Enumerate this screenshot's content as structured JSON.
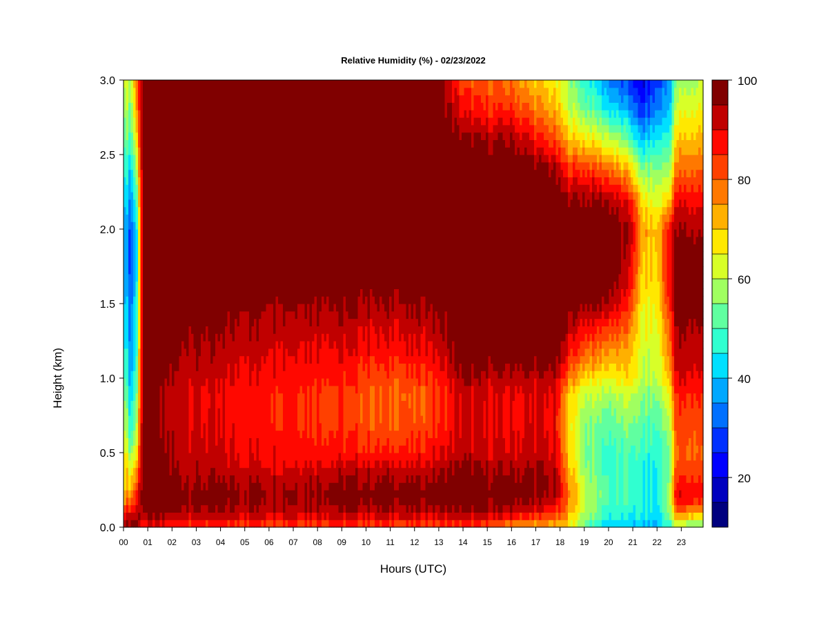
{
  "chart_data": {
    "type": "heatmap",
    "title": "Relative Humidity (%) - 02/23/2022",
    "xlabel": "Hours (UTC)",
    "ylabel": "Height (km)",
    "x_ticks": [
      "00",
      "01",
      "02",
      "03",
      "04",
      "05",
      "06",
      "07",
      "08",
      "09",
      "10",
      "11",
      "12",
      "13",
      "14",
      "15",
      "16",
      "17",
      "18",
      "19",
      "20",
      "21",
      "22",
      "23"
    ],
    "xlim": [
      0,
      23.9
    ],
    "y_ticks": [
      "0.0",
      "0.5",
      "1.0",
      "1.5",
      "2.0",
      "2.5",
      "3.0"
    ],
    "ylim": [
      0,
      3.0
    ],
    "colorbar": {
      "range": [
        10,
        100
      ],
      "step": 5,
      "ticks": [
        "20",
        "40",
        "60",
        "80",
        "100"
      ],
      "colors": [
        "#00007F",
        "#0000BF",
        "#0000FF",
        "#0030FF",
        "#0070FF",
        "#00A8FF",
        "#00E0FF",
        "#30FFD0",
        "#60FFA0",
        "#A0FF60",
        "#D8FF28",
        "#FFE800",
        "#FFB000",
        "#FF7800",
        "#FF4000",
        "#FF0800",
        "#C00000",
        "#800000"
      ]
    },
    "rh_profiles": {
      "heights_km": [
        0.0,
        0.05,
        0.1,
        0.2,
        0.3,
        0.4,
        0.5,
        0.7,
        0.9,
        1.0,
        1.2,
        1.4,
        1.5,
        1.7,
        2.0,
        2.2,
        2.4,
        2.6,
        2.8,
        3.0
      ],
      "times_utc": [
        0.0,
        0.3,
        0.55,
        0.8,
        1.5,
        2.5,
        4.0,
        6.0,
        7.5,
        9.0,
        10.5,
        12.0,
        13.0,
        14.0,
        15.0,
        16.0,
        17.0,
        17.8,
        18.3,
        19.0,
        20.0,
        21.0,
        21.3,
        22.0,
        22.5,
        22.8,
        23.9
      ],
      "values": [
        [
          97,
          97,
          85,
          74,
          70,
          72,
          70,
          65,
          60,
          55,
          50,
          48,
          45,
          42,
          40,
          45,
          50,
          55,
          60,
          65
        ],
        [
          97,
          97,
          88,
          78,
          70,
          65,
          55,
          45,
          40,
          38,
          35,
          33,
          32,
          30,
          30,
          35,
          40,
          50,
          55,
          60
        ],
        [
          97,
          97,
          92,
          88,
          82,
          75,
          68,
          60,
          55,
          52,
          50,
          48,
          47,
          45,
          45,
          52,
          60,
          68,
          75,
          80
        ],
        [
          88,
          92,
          97,
          100,
          100,
          100,
          100,
          100,
          100,
          100,
          100,
          100,
          100,
          100,
          100,
          100,
          100,
          100,
          100,
          100
        ],
        [
          86,
          92,
          96,
          98,
          97,
          96,
          96,
          95,
          95,
          96,
          98,
          100,
          100,
          100,
          100,
          100,
          100,
          100,
          100,
          100
        ],
        [
          84,
          90,
          95,
          98,
          96,
          94,
          93,
          92,
          92,
          93,
          96,
          99,
          100,
          100,
          100,
          100,
          100,
          100,
          100,
          100
        ],
        [
          83,
          89,
          94,
          97,
          95,
          92,
          90,
          89,
          88,
          90,
          93,
          96,
          98,
          100,
          100,
          100,
          100,
          100,
          100,
          100
        ],
        [
          83,
          89,
          94,
          97,
          95,
          91,
          89,
          87,
          87,
          89,
          92,
          95,
          97,
          100,
          100,
          100,
          100,
          100,
          100,
          100
        ],
        [
          83,
          89,
          94,
          97,
          95,
          91,
          88,
          86,
          86,
          88,
          91,
          95,
          97,
          100,
          100,
          100,
          100,
          100,
          100,
          97
        ],
        [
          83,
          89,
          94,
          98,
          96,
          92,
          87,
          84,
          84,
          86,
          90,
          94,
          96,
          100,
          100,
          100,
          100,
          100,
          100,
          97
        ],
        [
          82,
          88,
          94,
          98,
          96,
          92,
          86,
          80,
          80,
          82,
          88,
          92,
          95,
          100,
          100,
          100,
          100,
          100,
          100,
          97
        ],
        [
          82,
          88,
          93,
          98,
          96,
          91,
          86,
          81,
          80,
          83,
          89,
          93,
          96,
          100,
          100,
          100,
          100,
          100,
          100,
          100
        ],
        [
          82,
          88,
          94,
          98,
          97,
          93,
          89,
          85,
          84,
          86,
          91,
          95,
          97,
          100,
          100,
          100,
          100,
          100,
          100,
          100
        ],
        [
          82,
          90,
          95,
          100,
          100,
          97,
          93,
          91,
          92,
          95,
          100,
          100,
          100,
          100,
          100,
          100,
          100,
          97,
          88,
          82
        ],
        [
          80,
          88,
          94,
          98,
          97,
          94,
          91,
          89,
          90,
          93,
          100,
          100,
          100,
          100,
          100,
          100,
          100,
          95,
          85,
          80
        ],
        [
          76,
          84,
          92,
          98,
          97,
          94,
          91,
          89,
          90,
          93,
          100,
          100,
          100,
          100,
          100,
          100,
          100,
          95,
          85,
          78
        ],
        [
          73,
          80,
          88,
          96,
          97,
          95,
          92,
          90,
          90,
          93,
          100,
          100,
          100,
          100,
          100,
          100,
          98,
          88,
          78,
          70
        ],
        [
          70,
          78,
          85,
          93,
          95,
          93,
          90,
          88,
          90,
          93,
          100,
          100,
          100,
          100,
          100,
          100,
          95,
          82,
          72,
          66
        ],
        [
          68,
          72,
          76,
          80,
          78,
          75,
          72,
          70,
          72,
          80,
          90,
          96,
          100,
          100,
          100,
          97,
          85,
          72,
          62,
          58
        ],
        [
          52,
          56,
          60,
          62,
          60,
          57,
          55,
          57,
          62,
          70,
          82,
          92,
          97,
          100,
          100,
          96,
          85,
          68,
          55,
          48
        ],
        [
          42,
          45,
          48,
          50,
          50,
          48,
          48,
          52,
          58,
          65,
          77,
          88,
          96,
          100,
          100,
          95,
          80,
          62,
          45,
          35
        ],
        [
          40,
          43,
          46,
          48,
          48,
          48,
          50,
          56,
          62,
          68,
          72,
          78,
          82,
          88,
          92,
          85,
          68,
          50,
          35,
          25
        ],
        [
          40,
          42,
          45,
          46,
          46,
          46,
          48,
          52,
          56,
          60,
          62,
          64,
          66,
          70,
          75,
          68,
          55,
          40,
          25,
          18
        ],
        [
          38,
          40,
          42,
          44,
          44,
          44,
          46,
          50,
          55,
          60,
          62,
          64,
          66,
          68,
          70,
          62,
          55,
          45,
          35,
          28
        ],
        [
          48,
          52,
          56,
          58,
          56,
          54,
          54,
          60,
          66,
          72,
          78,
          82,
          86,
          90,
          88,
          70,
          58,
          48,
          40,
          35
        ],
        [
          56,
          66,
          78,
          90,
          86,
          82,
          80,
          82,
          86,
          90,
          93,
          96,
          98,
          100,
          95,
          88,
          78,
          70,
          62,
          55
        ],
        [
          52,
          62,
          75,
          88,
          86,
          82,
          80,
          82,
          86,
          90,
          93,
          96,
          98,
          100,
          95,
          88,
          80,
          72,
          66,
          60
        ]
      ]
    },
    "grid": false,
    "colorbar_placement": "right"
  }
}
